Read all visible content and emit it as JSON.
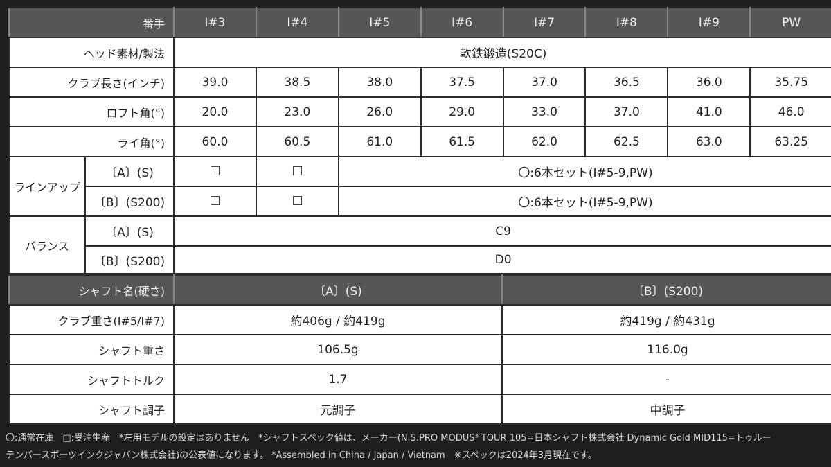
{
  "spec_table": {
    "header_label": "番手",
    "clubs": [
      "I#3",
      "I#4",
      "I#5",
      "I#6",
      "I#7",
      "I#8",
      "I#9",
      "PW"
    ],
    "head_material": {
      "label": "ヘッド素材/製法",
      "value": "軟鉄鍛造(S20C)"
    },
    "length": {
      "label": "クラブ長さ(インチ)",
      "values": [
        "39.0",
        "38.5",
        "38.0",
        "37.5",
        "37.0",
        "36.5",
        "36.0",
        "35.75"
      ]
    },
    "loft": {
      "label": "ロフト角(°)",
      "values": [
        "20.0",
        "23.0",
        "26.0",
        "29.0",
        "33.0",
        "37.0",
        "41.0",
        "46.0"
      ]
    },
    "lie": {
      "label": "ライ角(°)",
      "values": [
        "60.0",
        "60.5",
        "61.0",
        "61.5",
        "62.0",
        "62.5",
        "63.0",
        "63.25"
      ]
    },
    "lineup": {
      "label": "ラインアップ",
      "rows": [
        {
          "shaft": "〔A〕(S)",
          "i3": "□",
          "i4": "□",
          "set": "〇:6本セット(I#5-9,PW)"
        },
        {
          "shaft": "〔B〕(S200)",
          "i3": "□",
          "i4": "□",
          "set": "〇:6本セット(I#5-9,PW)"
        }
      ]
    },
    "balance": {
      "label": "バランス",
      "rows": [
        {
          "shaft": "〔A〕(S)",
          "value": "C9"
        },
        {
          "shaft": "〔B〕(S200)",
          "value": "D0"
        }
      ]
    }
  },
  "shaft_table": {
    "header_label": "シャフト名(硬さ)",
    "columns": [
      "〔A〕(S)",
      "〔B〕(S200)"
    ],
    "rows": [
      {
        "label": "クラブ重さ(I#5/I#7)",
        "values": [
          "約406g / 約419g",
          "約419g / 約431g"
        ]
      },
      {
        "label": "シャフト重さ",
        "values": [
          "106.5g",
          "116.0g"
        ]
      },
      {
        "label": "シャフトトルク",
        "values": [
          "1.7",
          "-"
        ]
      },
      {
        "label": "シャフト調子",
        "values": [
          "元調子",
          "中調子"
        ]
      }
    ]
  },
  "footnotes": {
    "line1": "〇:通常在庫　□:受注生産　*左用モデルの設定はありません　*シャフトスペック値は、メーカー(N.S.PRO MODUS³ TOUR 105=日本シャフト株式会社 Dynamic Gold MID115=トゥルー",
    "line2": "テンパースポーツインクジャパン株式会社)の公表値になります。 *Assembled in China / Japan / Vietnam　※スペックは2024年3月現在です。"
  }
}
